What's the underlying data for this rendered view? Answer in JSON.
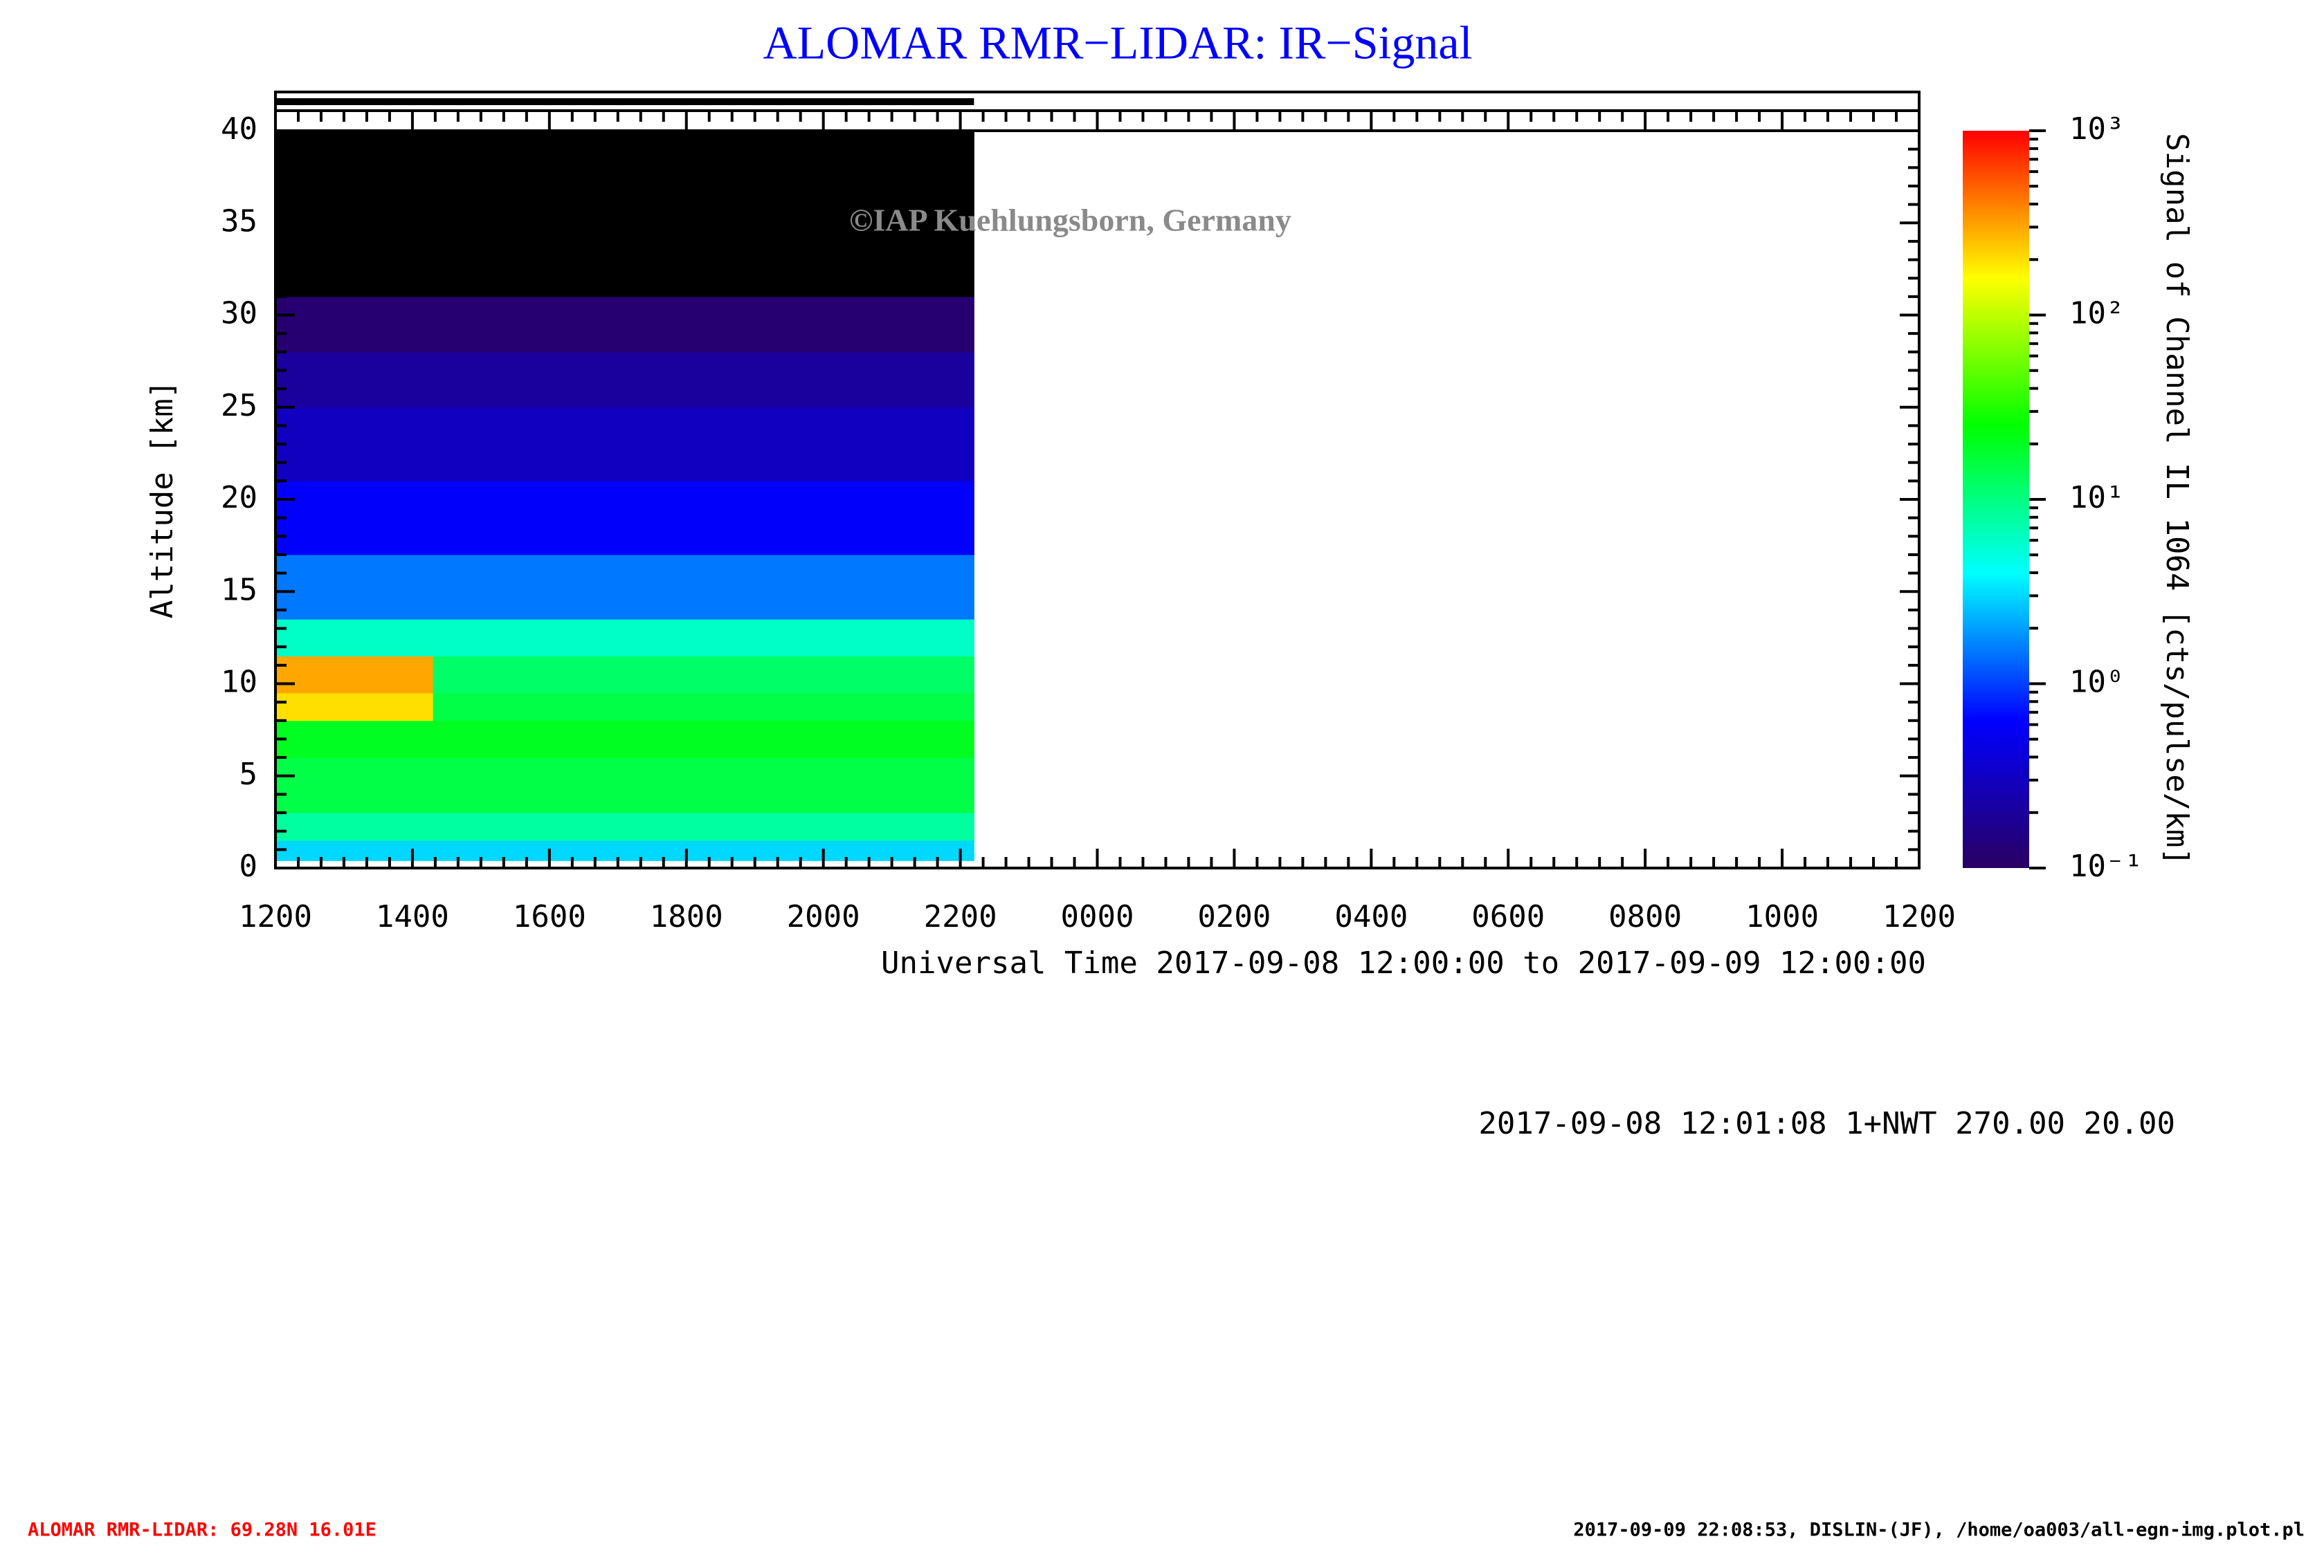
{
  "chart_data": {
    "type": "heatmap",
    "title": "ALOMAR RMR−LIDAR: IR−Signal",
    "watermark": "©IAP Kuehlungsborn, Germany",
    "xlabel": "Universal Time 2017-09-08 12:00:00 to 2017-09-09 12:00:00",
    "ylabel": "Altitude [km]",
    "colorbar_label": "Signal of Channel IL 1064 [cts/pulse/km]",
    "info": "2017-09-08 12:01:08 1+NWT 270.00 20.00",
    "footer_left": "ALOMAR RMR-LIDAR: 69.28N 16.01E",
    "footer_right": "2017-09-09 22:08:53, DISLIN-(JF), /home/oa003/all-egn-img.plot.pl",
    "xlim": [
      0,
      24
    ],
    "xticks": [
      {
        "value": 0,
        "label": "1200"
      },
      {
        "value": 2,
        "label": "1400"
      },
      {
        "value": 4,
        "label": "1600"
      },
      {
        "value": 6,
        "label": "1800"
      },
      {
        "value": 8,
        "label": "2000"
      },
      {
        "value": 10,
        "label": "2200"
      },
      {
        "value": 12,
        "label": "0000"
      },
      {
        "value": 14,
        "label": "0200"
      },
      {
        "value": 16,
        "label": "0400"
      },
      {
        "value": 18,
        "label": "0600"
      },
      {
        "value": 20,
        "label": "0800"
      },
      {
        "value": 22,
        "label": "1000"
      },
      {
        "value": 24,
        "label": "1200"
      }
    ],
    "x_minor": 6,
    "ylim": [
      0,
      40
    ],
    "yticks": [
      0,
      5,
      10,
      15,
      20,
      25,
      30,
      35,
      40
    ],
    "y_minor": 5,
    "coverage_x": [
      0,
      10.2
    ],
    "x_edges": [
      0,
      2.3,
      10.2
    ],
    "y_edges": [
      0.4,
      1.5,
      3,
      6,
      8,
      9.5,
      11.5,
      13.5,
      17,
      21,
      25,
      28,
      31,
      40
    ],
    "z": [
      [
        3,
        3
      ],
      [
        8,
        8
      ],
      [
        15,
        15
      ],
      [
        20,
        20
      ],
      [
        200,
        15
      ],
      [
        300,
        12
      ],
      [
        6,
        6
      ],
      [
        1.5,
        1.5
      ],
      [
        0.6,
        0.6
      ],
      [
        0.3,
        0.3
      ],
      [
        0.2,
        0.2
      ],
      [
        0.12,
        0.12
      ],
      [
        0.05,
        0.05
      ]
    ],
    "clim": [
      0.1,
      1000
    ],
    "log_color": true,
    "cticks": [
      {
        "value": 0.1,
        "label": "10⁻¹"
      },
      {
        "value": 1,
        "label": "10⁰"
      },
      {
        "value": 10,
        "label": "10¹"
      },
      {
        "value": 100,
        "label": "10²"
      },
      {
        "value": 1000,
        "label": "10³"
      }
    ],
    "colormap": [
      "#2a0060",
      "#0000ff",
      "#00ffff",
      "#00ff00",
      "#ffff00",
      "#ff0000"
    ],
    "under_color": "#000000"
  }
}
